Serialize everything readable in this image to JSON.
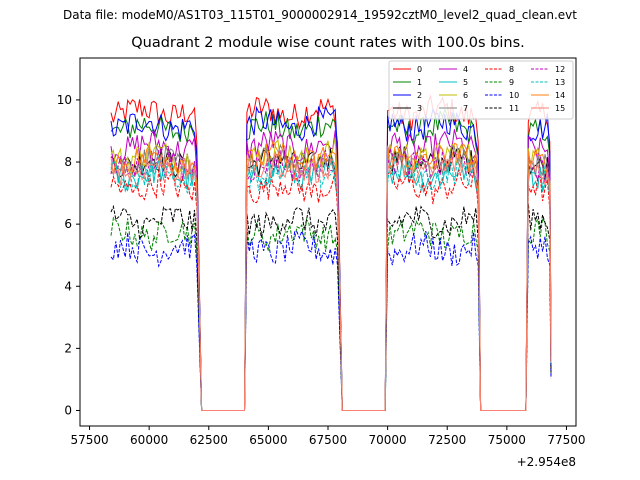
{
  "figure": {
    "suptitle": "Data file: modeM0/AS1T03_115T01_9000002914_19592cztM0_level2_quad_clean.evt",
    "title": "Quadrant 2 module wise count rates with 100.0s bins."
  },
  "chart_data": {
    "type": "line",
    "title": "Quadrant 2 module wise count rates with 100.0s bins.",
    "xlabel": "",
    "ylabel": "",
    "x_offset_label": "+2.954e8",
    "xlim": [
      57100,
      77900
    ],
    "ylim": [
      -0.5,
      11.35
    ],
    "xticks": [
      57500,
      60000,
      62500,
      65000,
      67500,
      70000,
      72500,
      75000,
      77500
    ],
    "xtick_labels": [
      "57500",
      "60000",
      "62500",
      "65000",
      "67500",
      "70000",
      "72500",
      "75000",
      "77500"
    ],
    "yticks": [
      0,
      2,
      4,
      6,
      8,
      10
    ],
    "ytick_labels": [
      "0",
      "2",
      "4",
      "6",
      "8",
      "10"
    ],
    "grid": false,
    "legend": {
      "placement": "top-right",
      "ncol": 4
    },
    "segments": [
      {
        "start": 58400,
        "end": 62000
      },
      {
        "start": 64100,
        "end": 67900
      },
      {
        "start": 70000,
        "end": 73800
      },
      {
        "start": 75900,
        "end": 76800
      }
    ],
    "gap_ranges": [
      [
        62200,
        64000
      ],
      [
        68100,
        69900
      ],
      [
        73900,
        75800
      ]
    ],
    "series": [
      {
        "name": "0",
        "color": "#ff0000",
        "dash": "solid",
        "level": 9.6
      },
      {
        "name": "1",
        "color": "#008000",
        "dash": "solid",
        "level": 9.1
      },
      {
        "name": "2",
        "color": "#0000ff",
        "dash": "solid",
        "level": 9.2
      },
      {
        "name": "3",
        "color": "#000000",
        "dash": "solid",
        "level": 8.0
      },
      {
        "name": "4",
        "color": "#bf00bf",
        "dash": "solid",
        "level": 8.5
      },
      {
        "name": "5",
        "color": "#00bfbf",
        "dash": "solid",
        "level": 7.6
      },
      {
        "name": "6",
        "color": "#bfbf00",
        "dash": "solid",
        "level": 8.2
      },
      {
        "name": "7",
        "color": "#808080",
        "dash": "solid",
        "level": 8.0
      },
      {
        "name": "8",
        "color": "#ff0000",
        "dash": "dashed",
        "level": 7.2
      },
      {
        "name": "9",
        "color": "#008000",
        "dash": "dashed",
        "level": 5.7
      },
      {
        "name": "10",
        "color": "#0000ff",
        "dash": "dashed",
        "level": 5.2
      },
      {
        "name": "11",
        "color": "#000000",
        "dash": "dashed",
        "level": 6.1
      },
      {
        "name": "12",
        "color": "#bf00bf",
        "dash": "dashed",
        "level": 7.9
      },
      {
        "name": "13",
        "color": "#00bfbf",
        "dash": "dashed",
        "level": 7.6
      },
      {
        "name": "14",
        "color": "#ff7f0e",
        "dash": "solid",
        "level": 8.1
      },
      {
        "name": "15",
        "color": "#fa8072",
        "dash": "solid",
        "level": 7.8
      }
    ]
  }
}
